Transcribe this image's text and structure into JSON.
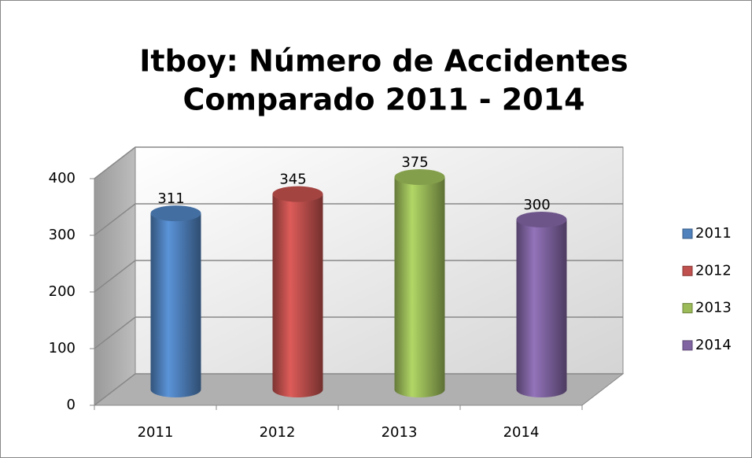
{
  "chart_data": {
    "type": "cylinder",
    "title": [
      "Itboy: Número de  Accidentes",
      "Comparado 2011 - 2014"
    ],
    "categories": [
      "2011",
      "2012",
      "2013",
      "2014"
    ],
    "values": [
      311,
      345,
      375,
      300
    ],
    "colors": [
      "#4f81bd",
      "#c0504d",
      "#9bbb59",
      "#8064a2"
    ],
    "ylim": [
      0,
      400
    ],
    "yticks": [
      0,
      100,
      200,
      300,
      400
    ],
    "grid": true,
    "legend": "right"
  }
}
